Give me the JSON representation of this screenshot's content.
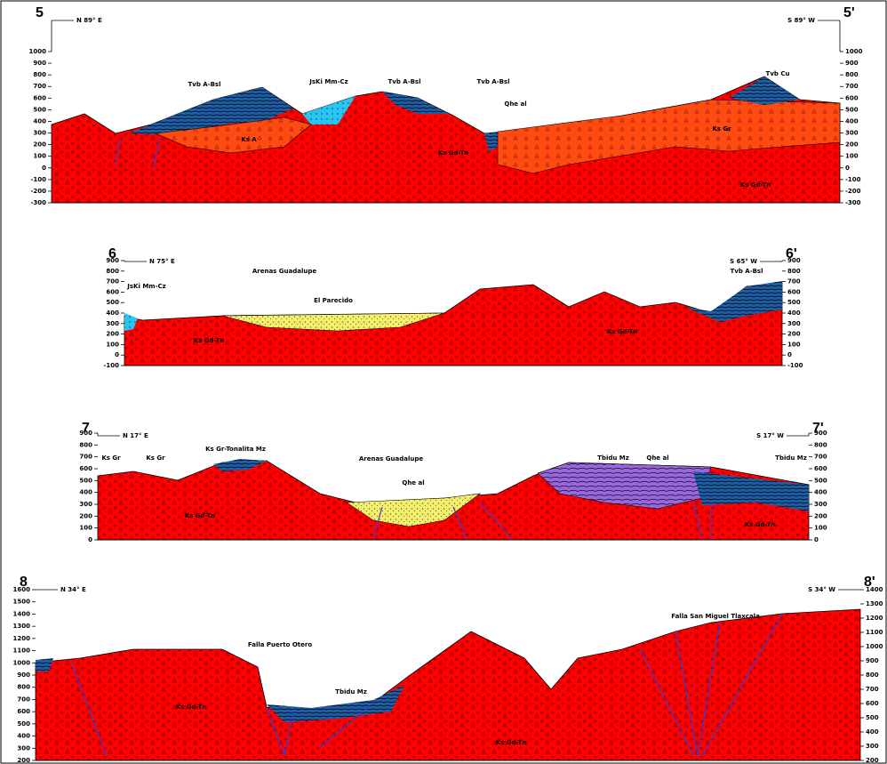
{
  "sections": [
    {
      "start": "5",
      "end": "5'",
      "bearing_start": "N 89° E",
      "bearing_end": "S 89° W",
      "left_ticks": [
        "1000",
        "900",
        "800",
        "700",
        "600",
        "500",
        "400",
        "300",
        "200",
        "100",
        "0",
        "-100",
        "-200",
        "-300"
      ],
      "right_ticks": [
        "1000",
        "900",
        "800",
        "700",
        "600",
        "500",
        "400",
        "300",
        "200",
        "100",
        "0",
        "-100",
        "-200",
        "-300"
      ],
      "units": [
        "Tvb A-Bsl",
        "JsKi Mm-Cz",
        "Tvb A-Bsl",
        "Tvb A-Bsl",
        "Qhe al",
        "Tvb Cu",
        "Ks A",
        "Ks Gd-Tn",
        "Ks Gr",
        "Ks Gd-Tn"
      ]
    },
    {
      "start": "6",
      "end": "6'",
      "bearing_start": "N 75° E",
      "bearing_end": "S 65° W",
      "left_ticks": [
        "900",
        "800",
        "700",
        "600",
        "500",
        "400",
        "300",
        "200",
        "100",
        "0",
        "-100"
      ],
      "right_ticks": [
        "900",
        "800",
        "700",
        "600",
        "500",
        "400",
        "300",
        "200",
        "100",
        "0",
        "-100"
      ],
      "units": [
        "JsKi Mm-Cz",
        "Arenas Guadalupe",
        "El Parecido",
        "Ks Gd-Tn",
        "Ks Gd-Tn",
        "Tvb A-Bsl"
      ]
    },
    {
      "start": "7",
      "end": "7'",
      "bearing_start": "N 17° E",
      "bearing_end": "S 17° W",
      "left_ticks": [
        "900",
        "800",
        "700",
        "600",
        "500",
        "400",
        "300",
        "200",
        "100",
        "0"
      ],
      "right_ticks": [
        "900",
        "800",
        "700",
        "600",
        "500",
        "400",
        "300",
        "200",
        "100",
        "0"
      ],
      "units": [
        "Ks Gr",
        "Ks Gr",
        "Ks Gr-Tonalita Mz",
        "Arenas Guadalupe",
        "Qhe al",
        "Tbidu Mz",
        "Qhe al",
        "Tbidu Mz",
        "Ks Gd-Tn",
        "Ks Gd-Tn"
      ]
    },
    {
      "start": "8",
      "end": "8'",
      "bearing_start": "N 34° E",
      "bearing_end": "S 34° W",
      "left_ticks": [
        "1600",
        "1500",
        "1400",
        "1300",
        "1200",
        "1100",
        "1000",
        "900",
        "800",
        "700",
        "600",
        "500",
        "400",
        "300",
        "200"
      ],
      "right_ticks": [
        "1400",
        "1300",
        "1200",
        "1100",
        "1000",
        "900",
        "800",
        "700",
        "600",
        "500",
        "400",
        "300",
        "200"
      ],
      "units": [
        "Falla Puerto Otero",
        "Tbidu Mz",
        "Falla San Miguel Tlaxcala",
        "Ks Gd-Tn",
        "Ks Gd-Tn"
      ]
    }
  ]
}
